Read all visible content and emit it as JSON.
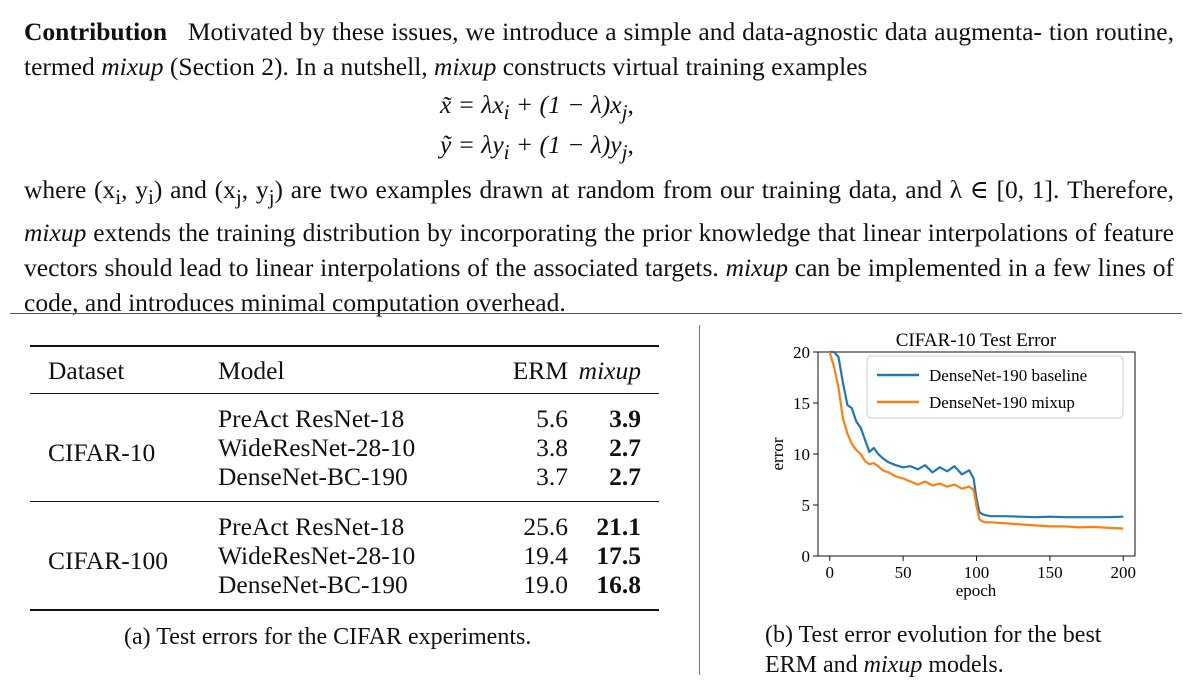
{
  "paragraph_top": {
    "heading": "Contribution",
    "p1": "Motivated by these issues, we introduce a simple and data-agnostic data augmenta-",
    "p2": "tion routine, termed ",
    "mixup1": "mixup",
    "p3": " (Section 2). In a nutshell, ",
    "mixup2": "mixup",
    "p4": " constructs virtual training examples"
  },
  "equations": {
    "line1": "x̃ = λx",
    "line1_i": "i",
    "line1_mid": " + (1 − λ)x",
    "line1_j": "j",
    "line1_end": ",",
    "line2": "ỹ = λy",
    "line2_i": "i",
    "line2_mid": " + (1 − λ)y",
    "line2_j": "j",
    "line2_end": ","
  },
  "paragraph_bottom": {
    "s1": "where (x",
    "s1_i": "i",
    "s2": ", y",
    "s2_i": "i",
    "s3": ") and (x",
    "s3_j": "j",
    "s4": ", y",
    "s4_j": "j",
    "s5": ") are two examples drawn at random from our training data, and λ ∈ [0, 1].",
    "s6": "Therefore, ",
    "mixup3": "mixup",
    "s7": " extends the training distribution by incorporating the prior knowledge that linear interpolations of feature vectors should lead to linear interpolations of the associated targets. ",
    "mixup4": "mixup",
    "s8": " can be implemented in a few lines of code, and introduces minimal computation overhead."
  },
  "table": {
    "headers": [
      "Dataset",
      "Model",
      "ERM",
      "mixup"
    ],
    "groups": [
      {
        "dataset": "CIFAR-10",
        "rows": [
          {
            "model": "PreAct ResNet-18",
            "erm": "5.6",
            "mixup": "3.9"
          },
          {
            "model": "WideResNet-28-10",
            "erm": "3.8",
            "mixup": "2.7"
          },
          {
            "model": "DenseNet-BC-190",
            "erm": "3.7",
            "mixup": "2.7"
          }
        ]
      },
      {
        "dataset": "CIFAR-100",
        "rows": [
          {
            "model": "PreAct ResNet-18",
            "erm": "25.6",
            "mixup": "21.1"
          },
          {
            "model": "WideResNet-28-10",
            "erm": "19.4",
            "mixup": "17.5"
          },
          {
            "model": "DenseNet-BC-190",
            "erm": "19.0",
            "mixup": "16.8"
          }
        ]
      }
    ],
    "caption": "(a) Test errors for the CIFAR experiments."
  },
  "figure_caption": {
    "line1": "(b) Test error evolution for the best",
    "line2a": "ERM and ",
    "line2_mixup": "mixup",
    "line2b": " models."
  },
  "chart_data": {
    "type": "line",
    "title": "CIFAR-10 Test Error",
    "xlabel": "epoch",
    "ylabel": "error",
    "xlim": [
      -8,
      208
    ],
    "ylim": [
      0,
      20
    ],
    "xticks": [
      0,
      50,
      100,
      150,
      200
    ],
    "yticks": [
      0,
      5,
      10,
      15,
      20
    ],
    "legend_position": "top-right",
    "series": [
      {
        "name": "DenseNet-190 baseline",
        "color": "#1f77b4",
        "x": [
          0,
          3,
          6,
          9,
          12,
          15,
          18,
          21,
          24,
          27,
          30,
          33,
          36,
          40,
          45,
          50,
          55,
          60,
          65,
          70,
          75,
          80,
          85,
          90,
          95,
          98,
          100,
          102,
          104,
          106,
          110,
          120,
          130,
          140,
          150,
          160,
          170,
          180,
          190,
          200
        ],
        "y": [
          20,
          20,
          19.5,
          17,
          14.8,
          14.5,
          13.2,
          12.6,
          11.4,
          10.2,
          10.6,
          10.0,
          9.6,
          9.2,
          8.9,
          8.7,
          8.8,
          8.5,
          8.9,
          8.2,
          8.7,
          8.3,
          8.8,
          8.0,
          8.4,
          7.6,
          5.6,
          4.3,
          4.1,
          4.0,
          3.9,
          3.9,
          3.85,
          3.8,
          3.85,
          3.8,
          3.8,
          3.8,
          3.8,
          3.85
        ]
      },
      {
        "name": "DenseNet-190 mixup",
        "color": "#ff7f0e",
        "x": [
          0,
          3,
          6,
          9,
          12,
          15,
          18,
          21,
          24,
          27,
          30,
          33,
          36,
          40,
          45,
          50,
          55,
          60,
          65,
          70,
          75,
          80,
          85,
          90,
          95,
          98,
          100,
          102,
          104,
          106,
          110,
          120,
          130,
          140,
          150,
          160,
          170,
          180,
          190,
          200
        ],
        "y": [
          20,
          18.5,
          16.5,
          13.5,
          12.0,
          11.0,
          10.4,
          10.0,
          9.3,
          9.0,
          9.1,
          8.8,
          8.4,
          8.2,
          7.8,
          7.6,
          7.3,
          7.0,
          7.3,
          6.9,
          7.1,
          6.8,
          7.0,
          6.6,
          6.8,
          6.5,
          4.9,
          3.6,
          3.4,
          3.3,
          3.3,
          3.2,
          3.1,
          3.0,
          2.9,
          2.9,
          2.8,
          2.85,
          2.75,
          2.7
        ]
      }
    ]
  }
}
